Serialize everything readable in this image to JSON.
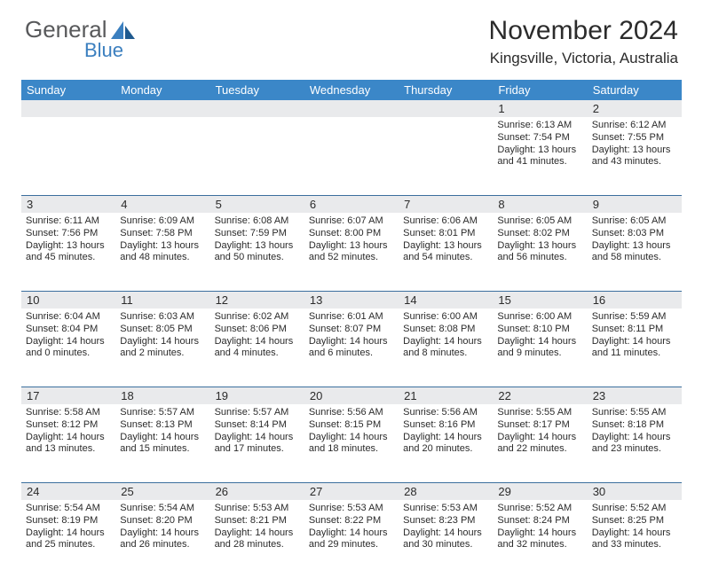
{
  "brand": {
    "general": "General",
    "blue": "Blue"
  },
  "title": "November 2024",
  "location": "Kingsville, Victoria, Australia",
  "colors": {
    "header_bg": "#3b87c8",
    "header_text": "#ffffff",
    "numrow_bg": "#e9eaec",
    "rule": "#3b6f9e",
    "body_text": "#2b2b2b",
    "logo_gray": "#58595b",
    "logo_blue": "#3b7fbf"
  },
  "day_names": [
    "Sunday",
    "Monday",
    "Tuesday",
    "Wednesday",
    "Thursday",
    "Friday",
    "Saturday"
  ],
  "weeks": [
    [
      {
        "n": "",
        "lines": []
      },
      {
        "n": "",
        "lines": []
      },
      {
        "n": "",
        "lines": []
      },
      {
        "n": "",
        "lines": []
      },
      {
        "n": "",
        "lines": []
      },
      {
        "n": "1",
        "lines": [
          "Sunrise: 6:13 AM",
          "Sunset: 7:54 PM",
          "Daylight: 13 hours",
          "and 41 minutes."
        ]
      },
      {
        "n": "2",
        "lines": [
          "Sunrise: 6:12 AM",
          "Sunset: 7:55 PM",
          "Daylight: 13 hours",
          "and 43 minutes."
        ]
      }
    ],
    [
      {
        "n": "3",
        "lines": [
          "Sunrise: 6:11 AM",
          "Sunset: 7:56 PM",
          "Daylight: 13 hours",
          "and 45 minutes."
        ]
      },
      {
        "n": "4",
        "lines": [
          "Sunrise: 6:09 AM",
          "Sunset: 7:58 PM",
          "Daylight: 13 hours",
          "and 48 minutes."
        ]
      },
      {
        "n": "5",
        "lines": [
          "Sunrise: 6:08 AM",
          "Sunset: 7:59 PM",
          "Daylight: 13 hours",
          "and 50 minutes."
        ]
      },
      {
        "n": "6",
        "lines": [
          "Sunrise: 6:07 AM",
          "Sunset: 8:00 PM",
          "Daylight: 13 hours",
          "and 52 minutes."
        ]
      },
      {
        "n": "7",
        "lines": [
          "Sunrise: 6:06 AM",
          "Sunset: 8:01 PM",
          "Daylight: 13 hours",
          "and 54 minutes."
        ]
      },
      {
        "n": "8",
        "lines": [
          "Sunrise: 6:05 AM",
          "Sunset: 8:02 PM",
          "Daylight: 13 hours",
          "and 56 minutes."
        ]
      },
      {
        "n": "9",
        "lines": [
          "Sunrise: 6:05 AM",
          "Sunset: 8:03 PM",
          "Daylight: 13 hours",
          "and 58 minutes."
        ]
      }
    ],
    [
      {
        "n": "10",
        "lines": [
          "Sunrise: 6:04 AM",
          "Sunset: 8:04 PM",
          "Daylight: 14 hours",
          "and 0 minutes."
        ]
      },
      {
        "n": "11",
        "lines": [
          "Sunrise: 6:03 AM",
          "Sunset: 8:05 PM",
          "Daylight: 14 hours",
          "and 2 minutes."
        ]
      },
      {
        "n": "12",
        "lines": [
          "Sunrise: 6:02 AM",
          "Sunset: 8:06 PM",
          "Daylight: 14 hours",
          "and 4 minutes."
        ]
      },
      {
        "n": "13",
        "lines": [
          "Sunrise: 6:01 AM",
          "Sunset: 8:07 PM",
          "Daylight: 14 hours",
          "and 6 minutes."
        ]
      },
      {
        "n": "14",
        "lines": [
          "Sunrise: 6:00 AM",
          "Sunset: 8:08 PM",
          "Daylight: 14 hours",
          "and 8 minutes."
        ]
      },
      {
        "n": "15",
        "lines": [
          "Sunrise: 6:00 AM",
          "Sunset: 8:10 PM",
          "Daylight: 14 hours",
          "and 9 minutes."
        ]
      },
      {
        "n": "16",
        "lines": [
          "Sunrise: 5:59 AM",
          "Sunset: 8:11 PM",
          "Daylight: 14 hours",
          "and 11 minutes."
        ]
      }
    ],
    [
      {
        "n": "17",
        "lines": [
          "Sunrise: 5:58 AM",
          "Sunset: 8:12 PM",
          "Daylight: 14 hours",
          "and 13 minutes."
        ]
      },
      {
        "n": "18",
        "lines": [
          "Sunrise: 5:57 AM",
          "Sunset: 8:13 PM",
          "Daylight: 14 hours",
          "and 15 minutes."
        ]
      },
      {
        "n": "19",
        "lines": [
          "Sunrise: 5:57 AM",
          "Sunset: 8:14 PM",
          "Daylight: 14 hours",
          "and 17 minutes."
        ]
      },
      {
        "n": "20",
        "lines": [
          "Sunrise: 5:56 AM",
          "Sunset: 8:15 PM",
          "Daylight: 14 hours",
          "and 18 minutes."
        ]
      },
      {
        "n": "21",
        "lines": [
          "Sunrise: 5:56 AM",
          "Sunset: 8:16 PM",
          "Daylight: 14 hours",
          "and 20 minutes."
        ]
      },
      {
        "n": "22",
        "lines": [
          "Sunrise: 5:55 AM",
          "Sunset: 8:17 PM",
          "Daylight: 14 hours",
          "and 22 minutes."
        ]
      },
      {
        "n": "23",
        "lines": [
          "Sunrise: 5:55 AM",
          "Sunset: 8:18 PM",
          "Daylight: 14 hours",
          "and 23 minutes."
        ]
      }
    ],
    [
      {
        "n": "24",
        "lines": [
          "Sunrise: 5:54 AM",
          "Sunset: 8:19 PM",
          "Daylight: 14 hours",
          "and 25 minutes."
        ]
      },
      {
        "n": "25",
        "lines": [
          "Sunrise: 5:54 AM",
          "Sunset: 8:20 PM",
          "Daylight: 14 hours",
          "and 26 minutes."
        ]
      },
      {
        "n": "26",
        "lines": [
          "Sunrise: 5:53 AM",
          "Sunset: 8:21 PM",
          "Daylight: 14 hours",
          "and 28 minutes."
        ]
      },
      {
        "n": "27",
        "lines": [
          "Sunrise: 5:53 AM",
          "Sunset: 8:22 PM",
          "Daylight: 14 hours",
          "and 29 minutes."
        ]
      },
      {
        "n": "28",
        "lines": [
          "Sunrise: 5:53 AM",
          "Sunset: 8:23 PM",
          "Daylight: 14 hours",
          "and 30 minutes."
        ]
      },
      {
        "n": "29",
        "lines": [
          "Sunrise: 5:52 AM",
          "Sunset: 8:24 PM",
          "Daylight: 14 hours",
          "and 32 minutes."
        ]
      },
      {
        "n": "30",
        "lines": [
          "Sunrise: 5:52 AM",
          "Sunset: 8:25 PM",
          "Daylight: 14 hours",
          "and 33 minutes."
        ]
      }
    ]
  ]
}
